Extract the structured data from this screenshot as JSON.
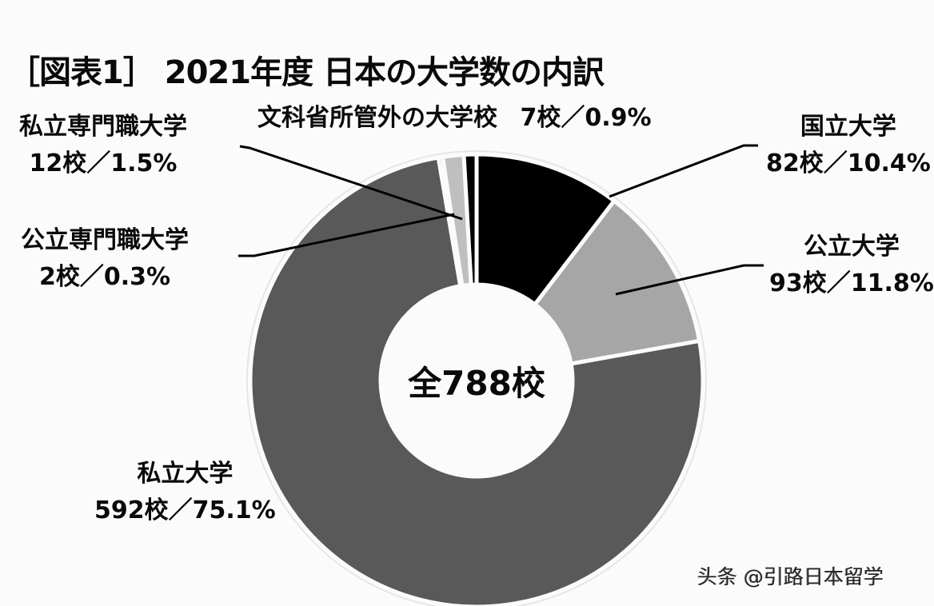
{
  "title": "［図表1］ 2021年度  日本の大学数の内訳",
  "center_label": "全788校",
  "watermark": "头条 @引路日本留学",
  "labels": {
    "kokuritsu": {
      "name": "国立大学",
      "value": "82校／10.4%"
    },
    "kouritsu": {
      "name": "公立大学",
      "value": "93校／11.8%"
    },
    "shiritsu": {
      "name": "私立大学",
      "value": "592校／75.1%"
    },
    "kouritsu_senmon": {
      "name": "公立専門職大学",
      "value": "2校／0.3%"
    },
    "shiritsu_senmon": {
      "name": "私立専門職大学",
      "value": "12校／1.5%"
    },
    "monka_gai": {
      "name": "文科省所管外の大学校",
      "value": "7校／0.9%"
    }
  },
  "chart_data": {
    "type": "pie",
    "variant": "donut",
    "title": "［図表1］ 2021年度 日本の大学数の内訳",
    "center_text": "全788校",
    "total": 788,
    "unit": "校",
    "start_angle_deg": 0,
    "direction": "clockwise",
    "slices": [
      {
        "name": "国立大学",
        "count": 82,
        "percent": 10.4,
        "color": "#000000"
      },
      {
        "name": "公立大学",
        "count": 93,
        "percent": 11.8,
        "color": "#a6a6a6"
      },
      {
        "name": "私立大学",
        "count": 592,
        "percent": 75.1,
        "color": "#595959"
      },
      {
        "name": "公立専門職大学",
        "count": 2,
        "percent": 0.3,
        "color": "#7f7f7f"
      },
      {
        "name": "私立専門職大学",
        "count": 12,
        "percent": 1.5,
        "color": "#bfbfbf"
      },
      {
        "name": "文科省所管外の大学校",
        "count": 7,
        "percent": 0.9,
        "color": "#000000"
      }
    ],
    "legend": "none (leader-line labels)"
  }
}
